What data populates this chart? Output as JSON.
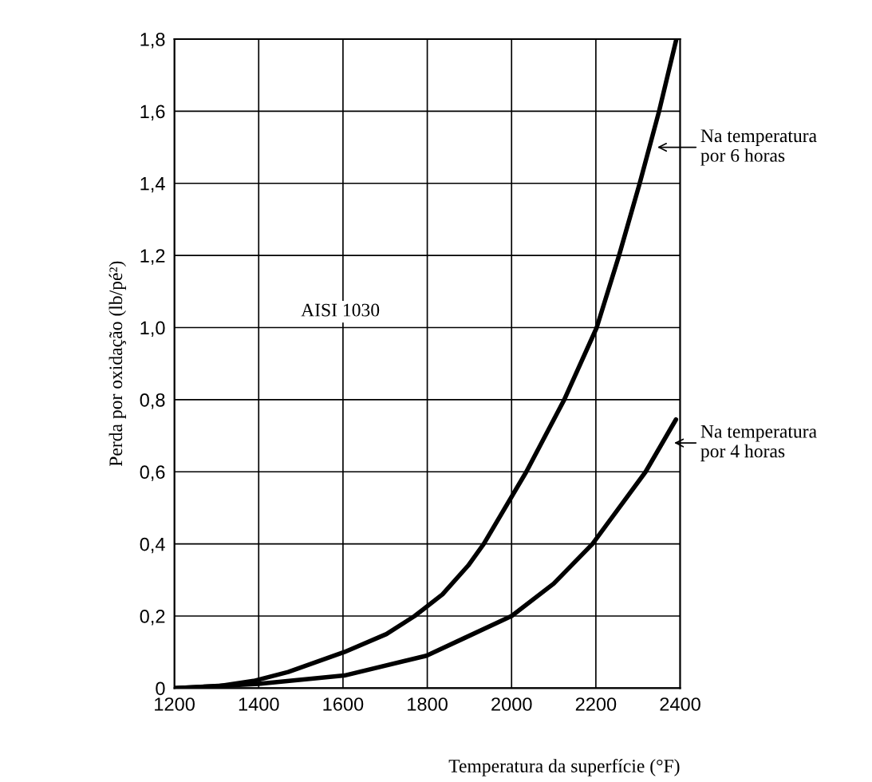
{
  "chart_data": {
    "type": "line",
    "xlabel": "Temperatura da superfície (°F)",
    "ylabel": "Perda por oxidação (lb/pé²)",
    "xlim": [
      1200,
      2400
    ],
    "ylim": [
      0,
      1.8
    ],
    "xticks": [
      1200,
      1400,
      1600,
      1800,
      2000,
      2200,
      2400
    ],
    "yticks": [
      0,
      {
        "value": 0.2,
        "label": "0,2"
      },
      {
        "value": 0.4,
        "label": "0,4"
      },
      {
        "value": 0.6,
        "label": "0,6"
      },
      {
        "value": 0.8,
        "label": "0,8"
      },
      {
        "value": 1.0,
        "label": "1,0"
      },
      {
        "value": 1.2,
        "label": "1,2"
      },
      {
        "value": 1.4,
        "label": "1,4"
      },
      {
        "value": 1.6,
        "label": "1,6"
      },
      {
        "value": 1.8,
        "label": "1,8"
      }
    ],
    "grid": true,
    "legend": false,
    "marker": "none",
    "line_style": "solid",
    "series": [
      {
        "color": "#000000",
        "x": [
          1200,
          1300,
          1388,
          1470,
          1603,
          1703,
          1770,
          1836,
          1897,
          1934,
          2035,
          2125,
          2202,
          2255,
          2304,
          2350,
          2391
        ],
        "values": [
          0,
          0.005,
          0.02,
          0.045,
          0.1,
          0.15,
          0.2,
          0.26,
          0.34,
          0.4,
          0.6,
          0.8,
          1.0,
          1.2,
          1.4,
          1.6,
          1.8
        ]
      },
      {
        "color": "#000000",
        "x": [
          1200,
          1400,
          1603,
          1798,
          1890,
          2000,
          2100,
          2192,
          2318,
          2390
        ],
        "values": [
          0,
          0.012,
          0.035,
          0.09,
          0.14,
          0.2,
          0.29,
          0.4,
          0.6,
          0.745
        ]
      }
    ],
    "annotations": [
      {
        "text": "Na temperatura\npor 6 horas",
        "x": 2330,
        "y": 1.5
      },
      {
        "text": "Na temperatura\npor 4 horas",
        "x": 2370,
        "y": 0.68
      },
      "AISI 1030"
    ]
  }
}
